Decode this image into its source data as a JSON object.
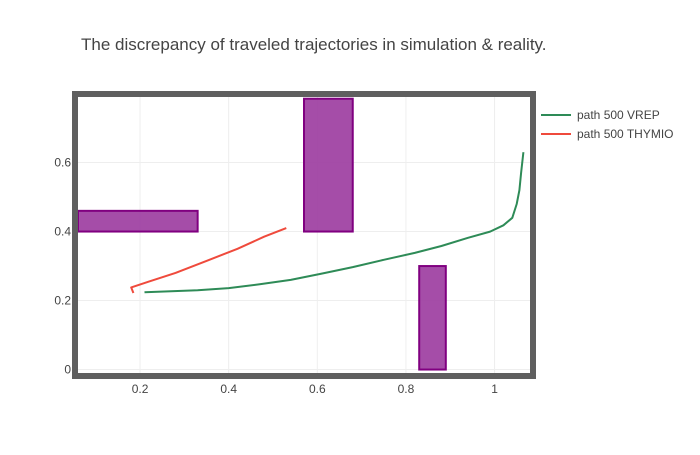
{
  "chart_data": {
    "type": "line",
    "title": "The discrepancy of traveled trajectories in simulation & reality.",
    "xlabel": "",
    "ylabel": "",
    "xlim": [
      0.06,
      1.08
    ],
    "ylim": [
      -0.01,
      0.79
    ],
    "x_ticks": [
      0.2,
      0.4,
      0.6,
      0.8,
      1
    ],
    "x_tick_labels": [
      "0.2",
      "0.4",
      "0.6",
      "0.8",
      "1"
    ],
    "y_ticks": [
      0,
      0.2,
      0.4,
      0.6
    ],
    "y_tick_labels": [
      "0",
      "0.2",
      "0.4",
      "0.6"
    ],
    "grid": true,
    "legend_position": "top-right",
    "series": [
      {
        "name": "path 500 VREP",
        "color": "#2e8b57",
        "x": [
          0.21,
          0.27,
          0.33,
          0.4,
          0.47,
          0.54,
          0.61,
          0.68,
          0.75,
          0.82,
          0.88,
          0.94,
          0.99,
          1.02,
          1.04,
          1.05,
          1.056,
          1.06,
          1.065
        ],
        "y": [
          0.224,
          0.227,
          0.23,
          0.236,
          0.247,
          0.26,
          0.278,
          0.297,
          0.318,
          0.338,
          0.358,
          0.382,
          0.4,
          0.418,
          0.44,
          0.48,
          0.52,
          0.57,
          0.63
        ]
      },
      {
        "name": "path 500 THYMIO",
        "color": "#ef4a3c",
        "x": [
          0.185,
          0.18,
          0.22,
          0.28,
          0.35,
          0.42,
          0.48,
          0.53
        ],
        "y": [
          0.222,
          0.238,
          0.255,
          0.28,
          0.315,
          0.35,
          0.385,
          0.41
        ]
      }
    ],
    "obstacles": [
      {
        "x0": 0.06,
        "x1": 0.33,
        "y0": 0.4,
        "y1": 0.46
      },
      {
        "x0": 0.57,
        "x1": 0.68,
        "y0": 0.4,
        "y1": 0.785
      },
      {
        "x0": 0.83,
        "x1": 0.89,
        "y0": 0.0,
        "y1": 0.3
      }
    ],
    "obstacle_fill": "#9b3a9e",
    "obstacle_stroke": "#800080",
    "frame_color": "#5f5f5f"
  }
}
